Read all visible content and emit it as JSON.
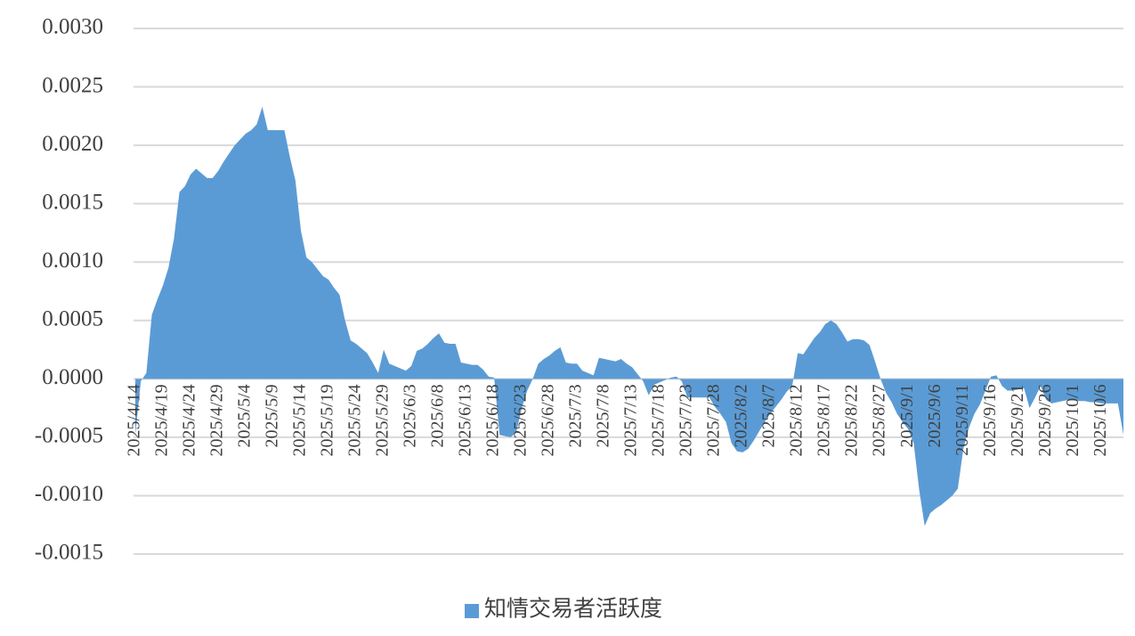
{
  "chart_data": {
    "type": "area",
    "categories": [
      "2025/4/14",
      null,
      null,
      null,
      null,
      "2025/4/19",
      null,
      null,
      null,
      null,
      "2025/4/24",
      null,
      null,
      null,
      null,
      "2025/4/29",
      null,
      null,
      null,
      null,
      "2025/5/4",
      null,
      null,
      null,
      null,
      "2025/5/9",
      null,
      null,
      null,
      null,
      "2025/5/14",
      null,
      null,
      null,
      null,
      "2025/5/19",
      null,
      null,
      null,
      null,
      "2025/5/24",
      null,
      null,
      null,
      null,
      "2025/5/29",
      null,
      null,
      null,
      null,
      "2025/6/3",
      null,
      null,
      null,
      null,
      "2025/6/8",
      null,
      null,
      null,
      null,
      "2025/6/13",
      null,
      null,
      null,
      null,
      "2025/6/18",
      null,
      null,
      null,
      null,
      "2025/6/23",
      null,
      null,
      null,
      null,
      "2025/6/28",
      null,
      null,
      null,
      null,
      "2025/7/3",
      null,
      null,
      null,
      null,
      "2025/7/8",
      null,
      null,
      null,
      null,
      "2025/7/13",
      null,
      null,
      null,
      null,
      "2025/7/18",
      null,
      null,
      null,
      null,
      "2025/7/23",
      null,
      null,
      null,
      null,
      "2025/7/28",
      null,
      null,
      null,
      null,
      "2025/8/2",
      null,
      null,
      null,
      null,
      "2025/8/7",
      null,
      null,
      null,
      null,
      "2025/8/12",
      null,
      null,
      null,
      null,
      "2025/8/17",
      null,
      null,
      null,
      null,
      "2025/8/22",
      null,
      null,
      null,
      null,
      "2025/8/27",
      null,
      null,
      null,
      null,
      "2025/9/1",
      null,
      null,
      null,
      null,
      "2025/9/6",
      null,
      null,
      null,
      null,
      "2025/9/11",
      null,
      null,
      null,
      null,
      "2025/9/16",
      null,
      null,
      null,
      null,
      "2025/9/21",
      null,
      null,
      null,
      null,
      "2025/9/26",
      null,
      null,
      null,
      null,
      "2025/10/1",
      null,
      null,
      null,
      null,
      "2025/10/6",
      null,
      null,
      null,
      null
    ],
    "series": [
      {
        "name": "知情交易者活跃度",
        "color": "#5b9bd5",
        "values": [
          -0.00048,
          -2e-05,
          5e-05,
          0.00055,
          0.00068,
          0.0008,
          0.00095,
          0.0012,
          0.0016,
          0.00165,
          0.00175,
          0.0018,
          0.00176,
          0.00172,
          0.00172,
          0.00178,
          0.00186,
          0.00193,
          0.002,
          0.00205,
          0.0021,
          0.00213,
          0.00218,
          0.00233,
          0.00213,
          0.00213,
          0.00213,
          0.00213,
          0.0019,
          0.0017,
          0.00127,
          0.00104,
          0.001,
          0.00094,
          0.00088,
          0.00085,
          0.00078,
          0.00072,
          0.0005,
          0.00033,
          0.0003,
          0.00026,
          0.00022,
          0.00014,
          5e-05,
          0.00025,
          0.00013,
          0.00011,
          9e-05,
          7e-05,
          0.00011,
          0.00024,
          0.00026,
          0.0003,
          0.00035,
          0.00039,
          0.00031,
          0.0003,
          0.0003,
          0.00014,
          0.00013,
          0.00012,
          0.00012,
          8e-05,
          2e-05,
          1e-05,
          -0.00048,
          -0.00049,
          -0.0005,
          -0.00046,
          -0.00025,
          -0.0001,
          0,
          0.00013,
          0.00017,
          0.0002,
          0.00024,
          0.00027,
          0.00014,
          0.00013,
          0.00013,
          7e-05,
          5e-05,
          3e-05,
          0.00018,
          0.00017,
          0.00016,
          0.00015,
          0.00017,
          0.00013,
          0.0001,
          4e-05,
          -2e-05,
          -0.00014,
          -5e-05,
          -3e-05,
          -1e-05,
          1e-05,
          2e-05,
          -2e-05,
          -0.00016,
          -0.00016,
          -0.00016,
          -0.00016,
          -0.00016,
          -0.00024,
          -0.0003,
          -0.00037,
          -0.00055,
          -0.00062,
          -0.00063,
          -0.0006,
          -0.00053,
          -0.00045,
          -0.00037,
          -0.0003,
          -0.00024,
          -0.00018,
          -0.00011,
          -6e-05,
          0.00022,
          0.00021,
          0.00028,
          0.00035,
          0.0004,
          0.00047,
          0.0005,
          0.00047,
          0.0004,
          0.00032,
          0.00034,
          0.00034,
          0.00033,
          0.00029,
          0.00015,
          0,
          -0.00012,
          -0.0002,
          -0.0003,
          -0.00037,
          -0.00043,
          -0.00055,
          -0.00095,
          -0.00126,
          -0.00115,
          -0.00111,
          -0.00108,
          -0.00104,
          -0.001,
          -0.00094,
          -0.0006,
          -0.00042,
          -0.0003,
          -0.00022,
          -0.0001,
          2e-05,
          3e-05,
          -6e-05,
          -0.0001,
          -0.0001,
          -9e-05,
          -8e-05,
          -0.00025,
          -0.00016,
          -6e-05,
          -0.00018,
          -0.00021,
          -0.0002,
          -0.00019,
          -0.00018,
          -0.00018,
          -0.00019,
          -0.00019,
          -0.0002,
          -0.0002,
          -0.00021,
          -0.00021,
          -0.00021,
          -0.00021,
          -0.00048
        ]
      }
    ],
    "ylim": [
      -0.0015,
      0.003
    ],
    "yticks": [
      {
        "value": -0.0015,
        "label": "-0.0015"
      },
      {
        "value": -0.001,
        "label": "-0.0010"
      },
      {
        "value": -0.0005,
        "label": "-0.0005"
      },
      {
        "value": 0,
        "label": "0.0000"
      },
      {
        "value": 0.0005,
        "label": "0.0005"
      },
      {
        "value": 0.001,
        "label": "0.0010"
      },
      {
        "value": 0.0015,
        "label": "0.0015"
      },
      {
        "value": 0.002,
        "label": "0.0020"
      },
      {
        "value": 0.0025,
        "label": "0.0025"
      },
      {
        "value": 0.003,
        "label": "0.0030"
      }
    ],
    "grid": true,
    "legend": "bottom"
  }
}
